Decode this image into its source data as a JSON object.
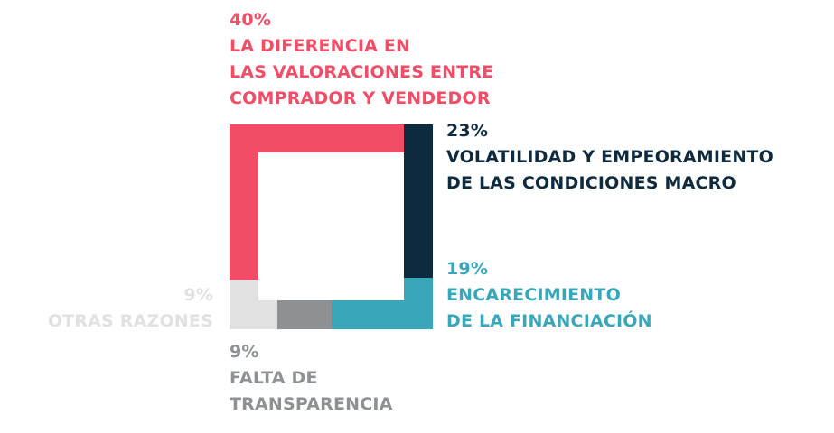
{
  "colors": {
    "red": "#f24d67",
    "navy": "#0e2a3f",
    "teal": "#38a7ba",
    "gray": "#8d9193",
    "light_gray": "#e1e1e1"
  },
  "chart_data": {
    "type": "square-ring",
    "segments": [
      {
        "value": 40,
        "percent_label": "40%",
        "label_lines": [
          "LA DIFERENCIA EN",
          "LAS VALORACIONES ENTRE",
          "COMPRADOR Y VENDEDOR"
        ],
        "color": "#f24d67"
      },
      {
        "value": 23,
        "percent_label": "23%",
        "label_lines": [
          "VOLATILIDAD Y EMPEORAMIENTO",
          "DE LAS CONDICIONES MACRO"
        ],
        "color": "#0e2a3f"
      },
      {
        "value": 19,
        "percent_label": "19%",
        "label_lines": [
          "ENCARECIMIENTO",
          "DE LA FINANCIACIÓN"
        ],
        "color": "#38a7ba"
      },
      {
        "value": 9,
        "percent_label": "9%",
        "label_lines": [
          "FALTA DE",
          "TRANSPARENCIA"
        ],
        "color": "#8d9193"
      },
      {
        "value": 9,
        "percent_label": "9%",
        "label_lines": [
          "OTRAS RAZONES"
        ],
        "color": "#e1e1e1"
      }
    ]
  }
}
